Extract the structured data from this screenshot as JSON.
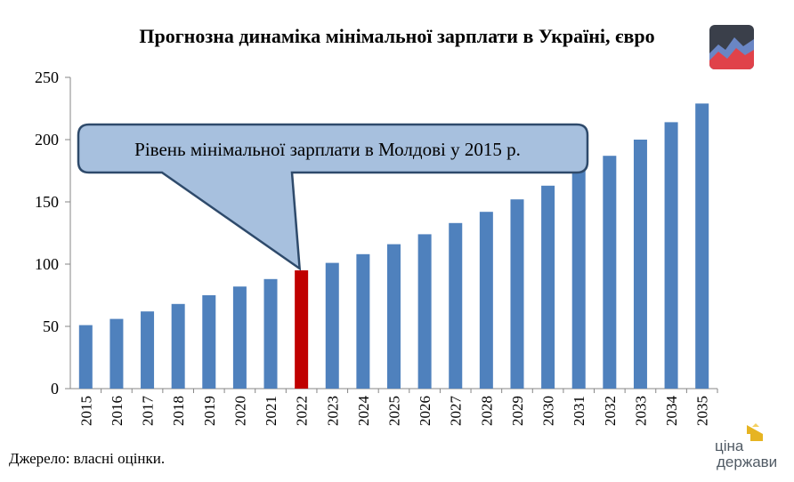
{
  "chart_data": {
    "type": "bar",
    "title": "Прогнозна динаміка мінімальної зарплати в Україні, євро",
    "xlabel": "",
    "ylabel": "",
    "ylim": [
      0,
      250
    ],
    "yticks": [
      0,
      50,
      100,
      150,
      200,
      250
    ],
    "categories": [
      "2015",
      "2016",
      "2017",
      "2018",
      "2019",
      "2020",
      "2021",
      "2022",
      "2023",
      "2024",
      "2025",
      "2026",
      "2027",
      "2028",
      "2029",
      "2030",
      "2031",
      "2032",
      "2033",
      "2034",
      "2035"
    ],
    "values": [
      51,
      56,
      62,
      68,
      75,
      82,
      88,
      95,
      101,
      108,
      116,
      124,
      133,
      142,
      152,
      163,
      175,
      187,
      200,
      214,
      229
    ],
    "highlight_index": 7,
    "colors": {
      "bar": "#4f81bd",
      "highlight": "#c00000",
      "callout_fill": "#a7c0de",
      "callout_stroke": "#2e4a6b"
    },
    "annotation": "Рівень мінімальної зарплати в Молдові у 2015 р.",
    "grid": false
  },
  "source": "Джерело: власні оцінки.",
  "logo": {
    "text_top": "ціна",
    "text_bottom": "держави"
  }
}
